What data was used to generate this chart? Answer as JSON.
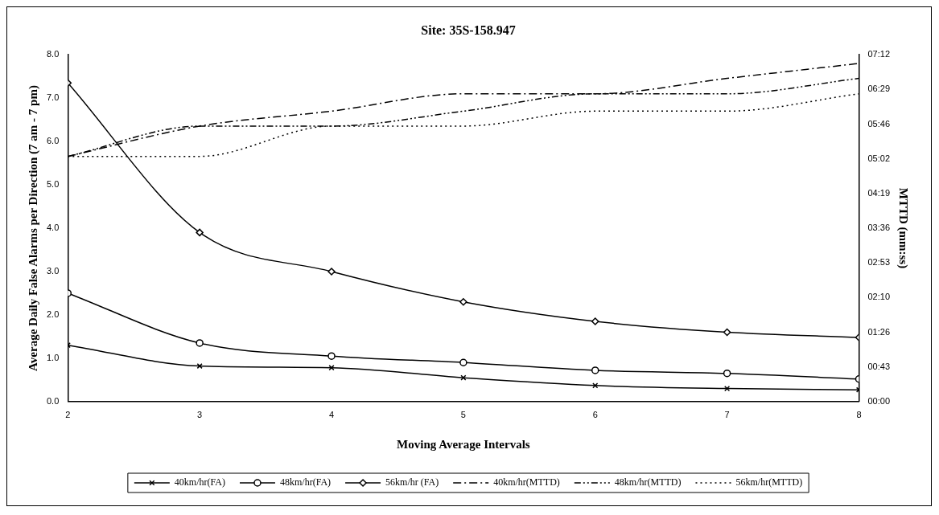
{
  "chart_data": {
    "type": "line",
    "title": "Site: 35S-158.947",
    "xlabel": "Moving Average Intervals",
    "ylabel": "Average Daily False Alarms per Direction (7 am - 7 pm)",
    "y2label": "MTTD (mm:ss)",
    "x": [
      2,
      3,
      4,
      5,
      6,
      7,
      8
    ],
    "xlim": [
      2,
      8
    ],
    "xticks": [
      2,
      3,
      4,
      5,
      6,
      7,
      8
    ],
    "ylim": [
      0,
      8
    ],
    "yticks": [
      {
        "value": 0,
        "label": "0.0"
      },
      {
        "value": 1,
        "label": "1.0"
      },
      {
        "value": 2,
        "label": "2.0"
      },
      {
        "value": 3,
        "label": "3.0"
      },
      {
        "value": 4,
        "label": "4.0"
      },
      {
        "value": 5,
        "label": "5.0"
      },
      {
        "value": 6,
        "label": "6.0"
      },
      {
        "value": 7,
        "label": "7.0"
      },
      {
        "value": 8,
        "label": "8.0"
      }
    ],
    "y2lim": [
      0,
      7.2
    ],
    "y2ticks": [
      {
        "value": 0,
        "label": "00:00"
      },
      {
        "value": 0.72,
        "label": "00:43"
      },
      {
        "value": 1.44,
        "label": "01:26"
      },
      {
        "value": 2.16,
        "label": "02:10"
      },
      {
        "value": 2.88,
        "label": "02:53"
      },
      {
        "value": 3.6,
        "label": "03:36"
      },
      {
        "value": 4.32,
        "label": "04:19"
      },
      {
        "value": 5.04,
        "label": "05:02"
      },
      {
        "value": 5.76,
        "label": "05:46"
      },
      {
        "value": 6.48,
        "label": "06:29"
      },
      {
        "value": 7.2,
        "label": "07:12"
      }
    ],
    "grid": false,
    "legend": "bottom",
    "series": [
      {
        "name": "40km/hr(FA)",
        "color": "#000000",
        "marker": "cross",
        "line_style": "solid",
        "values": [
          1.3,
          0.82,
          0.78,
          0.55,
          0.37,
          0.3,
          0.27
        ]
      },
      {
        "name": "48km/hr(FA)",
        "color": "#000000",
        "marker": "circle",
        "line_style": "solid",
        "values": [
          2.5,
          1.35,
          1.05,
          0.9,
          0.72,
          0.65,
          0.52
        ]
      },
      {
        "name": "56km/hr (FA)",
        "color": "#000000",
        "marker": "diamond",
        "line_style": "solid",
        "values": [
          7.35,
          3.9,
          3.0,
          2.3,
          1.85,
          1.6,
          1.48
        ]
      },
      {
        "name": "40km/hr(MTTD)",
        "color": "#000000",
        "marker": "none",
        "line_style": "dashdot",
        "axis": "y2",
        "values": [
          5.09,
          5.72,
          6.03,
          6.39,
          6.39,
          6.71,
          7.02
        ]
      },
      {
        "name": "48km/hr(MTTD)",
        "color": "#000000",
        "marker": "none",
        "line_style": "dashed",
        "axis": "y2",
        "values": [
          5.09,
          5.72,
          5.72,
          6.03,
          6.39,
          6.39,
          6.71
        ]
      },
      {
        "name": "56km/hr(MTTD)",
        "color": "#000000",
        "marker": "none",
        "line_style": "dotted",
        "axis": "y2",
        "values": [
          5.09,
          5.09,
          5.72,
          5.72,
          6.03,
          6.03,
          6.39
        ]
      }
    ]
  }
}
